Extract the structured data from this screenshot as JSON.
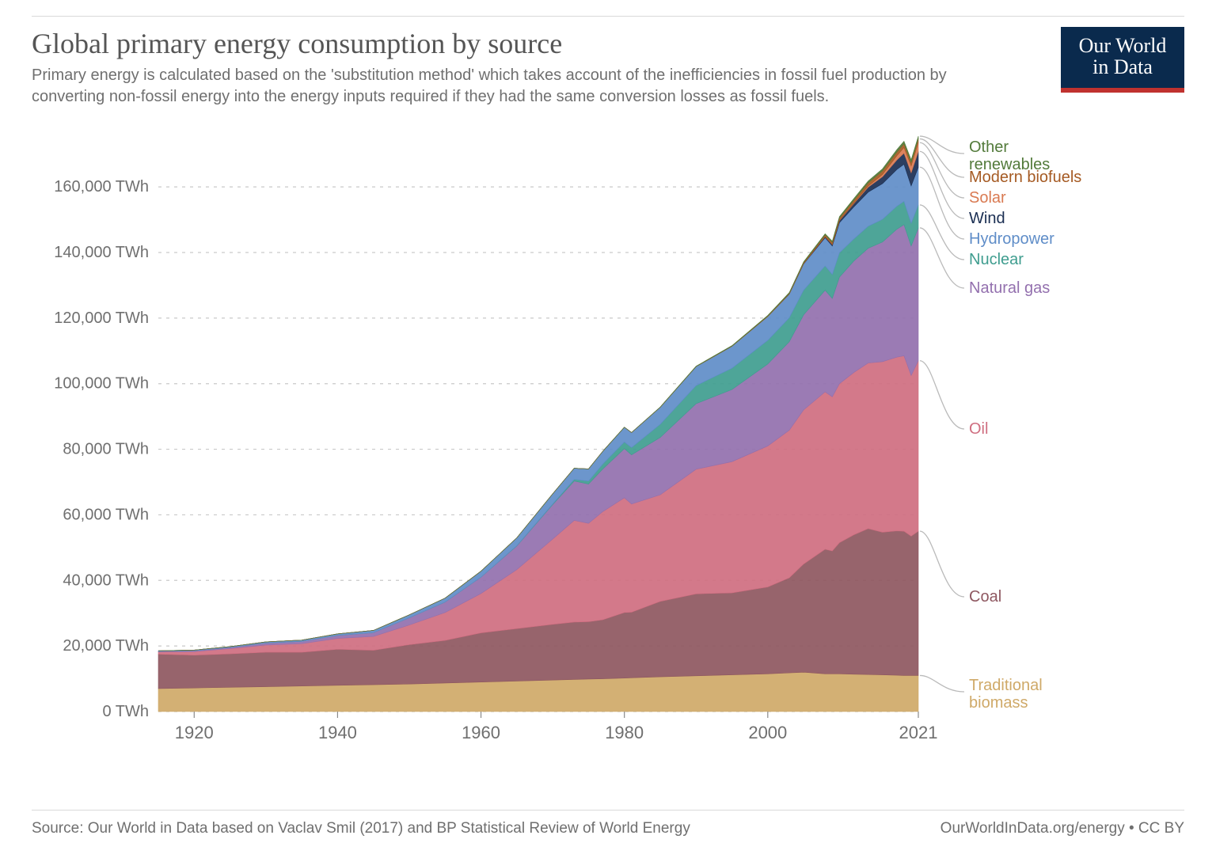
{
  "header": {
    "title": "Global primary energy consumption by source",
    "subtitle": "Primary energy is calculated based on the 'substitution method' which takes account of the inefficiencies in fossil fuel production by converting non-fossil energy into the energy inputs required if they had the same conversion losses as fossil fuels."
  },
  "logo": {
    "line1": "Our World",
    "line2": "in Data",
    "bg_color": "#0a2a4d",
    "accent_color": "#c0322f",
    "text_color": "#ffffff"
  },
  "footer": {
    "source": "Source: Our World in Data based on Vaclav Smil (2017) and BP Statistical Review of World Energy",
    "attribution": "OurWorldInData.org/energy • CC BY"
  },
  "chart": {
    "type": "stacked-area",
    "unit": "TWh",
    "background_color": "#ffffff",
    "grid_color": "#c9c9c9",
    "axis_text_color": "#6f6f6f",
    "tick_font_size": 20,
    "x_axis": {
      "min": 1915,
      "max": 2021,
      "ticks": [
        1920,
        1940,
        1960,
        1980,
        2000,
        2021
      ]
    },
    "y_axis": {
      "min": 0,
      "max": 175000,
      "tick_step": 20000,
      "ticks": [
        0,
        20000,
        40000,
        60000,
        80000,
        100000,
        120000,
        140000,
        160000
      ],
      "tick_labels": [
        "0 TWh",
        "20,000 TWh",
        "40,000 TWh",
        "60,000 TWh",
        "80,000 TWh",
        "100,000 TWh",
        "120,000 TWh",
        "140,000 TWh",
        "160,000 TWh"
      ]
    },
    "years": [
      1915,
      1920,
      1925,
      1930,
      1935,
      1940,
      1945,
      1950,
      1955,
      1960,
      1965,
      1970,
      1973,
      1975,
      1977,
      1980,
      1981,
      1985,
      1990,
      1995,
      2000,
      2003,
      2005,
      2008,
      2009,
      2010,
      2012,
      2014,
      2016,
      2018,
      2019,
      2020,
      2021
    ],
    "series": [
      {
        "id": "traditional_biomass",
        "label": "Traditional biomass",
        "color": "#cfa968",
        "values": [
          7000,
          7200,
          7400,
          7600,
          7800,
          8000,
          8200,
          8400,
          8700,
          9000,
          9300,
          9600,
          9800,
          9900,
          10000,
          10200,
          10300,
          10600,
          10900,
          11200,
          11500,
          11800,
          12000,
          11500,
          11500,
          11500,
          11400,
          11300,
          11200,
          11100,
          11000,
          11000,
          11000
        ]
      },
      {
        "id": "coal",
        "label": "Coal",
        "color": "#8e5760",
        "values": [
          10500,
          10000,
          10200,
          10500,
          10300,
          11000,
          10500,
          12000,
          13000,
          15000,
          16000,
          17000,
          17500,
          17500,
          18000,
          20000,
          20000,
          23000,
          25000,
          25000,
          26500,
          29000,
          33000,
          38000,
          37500,
          40000,
          42500,
          44500,
          43500,
          44000,
          44000,
          42500,
          44000
        ]
      },
      {
        "id": "oil",
        "label": "Oil",
        "color": "#cf6e80",
        "values": [
          700,
          1100,
          1600,
          2200,
          2600,
          3300,
          4200,
          6000,
          8500,
          12000,
          18000,
          26000,
          31000,
          30000,
          33000,
          35000,
          33000,
          32500,
          38000,
          40000,
          43000,
          45000,
          47000,
          48000,
          47000,
          48500,
          49500,
          50500,
          52000,
          53000,
          53500,
          49000,
          52000
        ]
      },
      {
        "id": "natural_gas",
        "label": "Natural gas",
        "color": "#9370ae",
        "values": [
          200,
          250,
          350,
          600,
          700,
          900,
          1200,
          2200,
          3200,
          5000,
          7200,
          10500,
          12000,
          12000,
          13000,
          15000,
          15000,
          17500,
          20000,
          22000,
          25000,
          27000,
          29000,
          31000,
          30000,
          32500,
          34000,
          35000,
          36500,
          39000,
          40000,
          39500,
          40500
        ]
      },
      {
        "id": "nuclear",
        "label": "Nuclear",
        "color": "#3f9d8f",
        "values": [
          0,
          0,
          0,
          0,
          0,
          0,
          0,
          0,
          0,
          10,
          100,
          200,
          500,
          900,
          1500,
          2000,
          2200,
          4000,
          5500,
          6500,
          7200,
          7300,
          7500,
          7400,
          7300,
          7400,
          6700,
          6700,
          6900,
          7000,
          7100,
          6900,
          7000
        ]
      },
      {
        "id": "hydropower",
        "label": "Hydropower",
        "color": "#5f8dc8",
        "values": [
          150,
          200,
          260,
          350,
          400,
          500,
          650,
          900,
          1200,
          1800,
          2400,
          3100,
          3400,
          3700,
          3900,
          4500,
          4600,
          5200,
          5800,
          6700,
          7300,
          7200,
          8000,
          8600,
          8700,
          9200,
          9800,
          10400,
          10900,
          11200,
          11300,
          11400,
          11500
        ]
      },
      {
        "id": "wind",
        "label": "Wind",
        "color": "#1a2e52",
        "values": [
          0,
          0,
          0,
          0,
          0,
          0,
          0,
          0,
          0,
          0,
          0,
          0,
          0,
          0,
          0,
          0,
          0,
          0,
          0,
          2,
          10,
          60,
          120,
          300,
          400,
          600,
          1000,
          1500,
          2100,
          2900,
          3400,
          4000,
          4800
        ]
      },
      {
        "id": "solar",
        "label": "Solar",
        "color": "#d97a52",
        "values": [
          0,
          0,
          0,
          0,
          0,
          0,
          0,
          0,
          0,
          0,
          0,
          0,
          0,
          0,
          0,
          0,
          0,
          0,
          0,
          0,
          0,
          0,
          1,
          10,
          20,
          50,
          150,
          350,
          700,
          1300,
          1700,
          2100,
          2700
        ]
      },
      {
        "id": "modern_biofuels",
        "label": "Modern biofuels",
        "color": "#a55a23",
        "values": [
          0,
          0,
          0,
          0,
          0,
          0,
          0,
          0,
          0,
          0,
          0,
          0,
          0,
          0,
          0,
          5,
          6,
          30,
          40,
          60,
          130,
          230,
          330,
          600,
          700,
          800,
          900,
          1000,
          1100,
          1150,
          1180,
          1100,
          1150
        ]
      },
      {
        "id": "other_renewables",
        "label": "Other renewables",
        "color": "#527a3a",
        "values": [
          0,
          0,
          0,
          0,
          0,
          0,
          0,
          0,
          0,
          0,
          0,
          0,
          0,
          0,
          0,
          20,
          22,
          60,
          100,
          130,
          170,
          190,
          210,
          300,
          330,
          400,
          480,
          540,
          600,
          700,
          750,
          780,
          820
        ]
      }
    ],
    "legend": {
      "font_size": 20,
      "order_top_to_bottom": [
        "other_renewables",
        "modern_biofuels",
        "solar",
        "wind",
        "hydropower",
        "nuclear",
        "natural_gas",
        "oil",
        "coal",
        "traditional_biomass"
      ],
      "leader_color": "#bababa"
    }
  }
}
